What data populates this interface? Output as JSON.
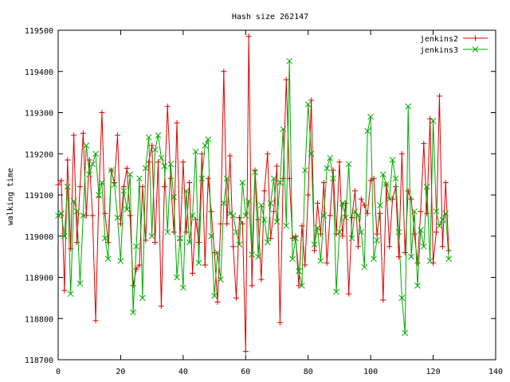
{
  "chart_data": {
    "type": "line",
    "title": "Hash size 262147",
    "xlabel": "",
    "ylabel": "walking time",
    "xlim": [
      0,
      140
    ],
    "ylim": [
      118700,
      119500
    ],
    "xticks": [
      0,
      20,
      40,
      60,
      80,
      100,
      120,
      140
    ],
    "yticks": [
      118700,
      118800,
      118900,
      119000,
      119100,
      119200,
      119300,
      119400,
      119500
    ],
    "grid": false,
    "legend_position": "top-right",
    "series": [
      {
        "name": "jenkins2",
        "color": "#dd0000",
        "marker": "plus",
        "x": [
          0,
          1,
          2,
          3,
          4,
          5,
          6,
          7,
          8,
          9,
          10,
          11,
          12,
          13,
          14,
          15,
          16,
          17,
          18,
          19,
          20,
          21,
          22,
          23,
          24,
          25,
          26,
          27,
          28,
          29,
          30,
          31,
          32,
          33,
          34,
          35,
          36,
          37,
          38,
          39,
          40,
          41,
          42,
          43,
          44,
          45,
          46,
          47,
          48,
          49,
          50,
          51,
          52,
          53,
          54,
          55,
          56,
          57,
          58,
          59,
          60,
          61,
          62,
          63,
          64,
          65,
          66,
          67,
          68,
          69,
          70,
          71,
          72,
          73,
          74,
          75,
          76,
          77,
          78,
          79,
          80,
          81,
          82,
          83,
          84,
          85,
          86,
          87,
          88,
          89,
          90,
          91,
          92,
          93,
          94,
          95,
          96,
          97,
          98,
          99,
          100,
          101,
          102,
          103,
          104,
          105,
          106,
          107,
          108,
          109,
          110,
          111,
          112,
          113,
          114,
          115,
          116,
          117,
          118,
          119,
          120,
          121,
          122,
          123,
          124,
          125
        ],
        "values": [
          119125,
          119135,
          118868,
          119185,
          118970,
          119245,
          118985,
          119120,
          119250,
          119050,
          119185,
          119050,
          118795,
          119095,
          119300,
          119055,
          118985,
          119160,
          119130,
          119245,
          119030,
          119120,
          119165,
          119050,
          118880,
          118920,
          118930,
          119120,
          118990,
          119180,
          119220,
          118985,
          119180,
          118830,
          119120,
          119315,
          119140,
          119010,
          119275,
          118990,
          119180,
          119010,
          119130,
          118910,
          119040,
          118985,
          119200,
          118930,
          119140,
          119060,
          118960,
          118840,
          119030,
          119400,
          119030,
          119195,
          118975,
          118850,
          119045,
          119030,
          118720,
          119485,
          118880,
          119160,
          119040,
          118895,
          119110,
          119200,
          118995,
          119060,
          119170,
          118790,
          119140,
          119380,
          119140,
          118995,
          119000,
          118880,
          119025,
          118930,
          119100,
          119330,
          118965,
          119080,
          119005,
          119130,
          118935,
          119050,
          119160,
          119005,
          119180,
          119000,
          119080,
          118860,
          119045,
          119110,
          118975,
          119090,
          119075,
          119055,
          119135,
          119140,
          119005,
          119055,
          118845,
          119125,
          118975,
          119090,
          119120,
          118950,
          119200,
          118960,
          119110,
          119090,
          119005,
          118935,
          119060,
          119225,
          119055,
          119285,
          118935,
          119010,
          119340,
          118975,
          119130,
          118965
        ]
      },
      {
        "name": "jenkins3",
        "color": "#00aa00",
        "marker": "cross",
        "x": [
          0,
          1,
          2,
          3,
          4,
          5,
          6,
          7,
          8,
          9,
          10,
          11,
          12,
          13,
          14,
          15,
          16,
          17,
          18,
          19,
          20,
          21,
          22,
          23,
          24,
          25,
          26,
          27,
          28,
          29,
          30,
          31,
          32,
          33,
          34,
          35,
          36,
          37,
          38,
          39,
          40,
          41,
          42,
          43,
          44,
          45,
          46,
          47,
          48,
          49,
          50,
          51,
          52,
          53,
          54,
          55,
          56,
          57,
          58,
          59,
          60,
          61,
          62,
          63,
          64,
          65,
          66,
          67,
          68,
          69,
          70,
          71,
          72,
          73,
          74,
          75,
          76,
          77,
          78,
          79,
          80,
          81,
          82,
          83,
          84,
          85,
          86,
          87,
          88,
          89,
          90,
          91,
          92,
          93,
          94,
          95,
          96,
          97,
          98,
          99,
          100,
          101,
          102,
          103,
          104,
          105,
          106,
          107,
          108,
          109,
          110,
          111,
          112,
          113,
          114,
          115,
          116,
          117,
          118,
          119,
          120,
          121,
          122,
          123,
          124,
          125
        ],
        "values": [
          119050,
          119055,
          119000,
          119120,
          118860,
          119085,
          119060,
          118885,
          119050,
          119220,
          119150,
          119175,
          119200,
          119100,
          119130,
          118995,
          118945,
          119160,
          119125,
          119045,
          118940,
          119110,
          119065,
          119150,
          118815,
          118975,
          119140,
          118850,
          119165,
          119240,
          119000,
          119210,
          119245,
          119190,
          119170,
          119010,
          119175,
          119095,
          118900,
          118995,
          118875,
          119110,
          118985,
          119050,
          119205,
          118935,
          119140,
          119220,
          119235,
          119000,
          118855,
          118960,
          118895,
          119080,
          119140,
          119055,
          119050,
          119010,
          118980,
          119130,
          119050,
          119085,
          118955,
          119155,
          118950,
          119075,
          119040,
          118985,
          119080,
          119140,
          119035,
          119130,
          119260,
          119025,
          119425,
          118945,
          118995,
          118915,
          118880,
          119160,
          119320,
          119200,
          118980,
          119020,
          118940,
          119050,
          119165,
          119190,
          119140,
          118865,
          119010,
          119080,
          119045,
          119175,
          118995,
          119060,
          119050,
          119010,
          118925,
          119255,
          119290,
          118945,
          118990,
          119075,
          119150,
          119125,
          119090,
          119185,
          119140,
          119010,
          118850,
          118765,
          119315,
          118950,
          119060,
          118880,
          119015,
          118975,
          119120,
          118940,
          119280,
          119060,
          119025,
          119040,
          119055,
          118945
        ]
      }
    ]
  }
}
